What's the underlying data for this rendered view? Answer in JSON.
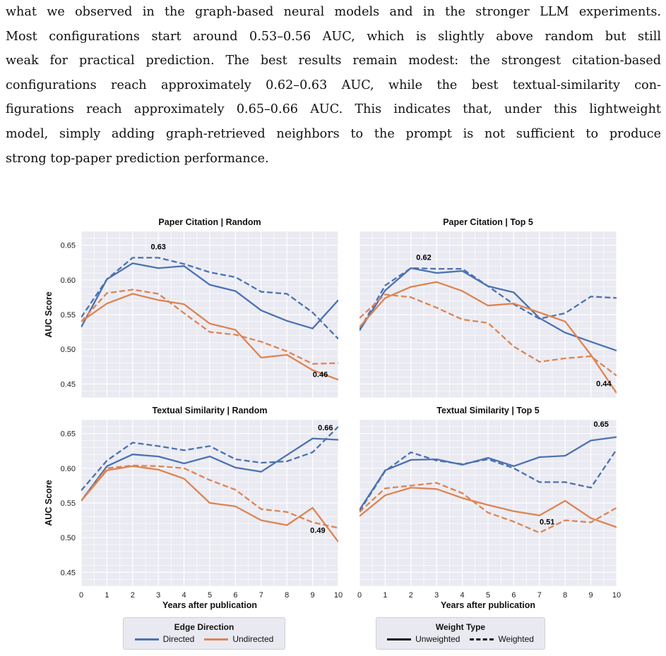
{
  "paragraph": {
    "lines": [
      "what we observed in the graph-based neural models and in the stronger LLM experiments.",
      "Most configurations start around 0.53–0.56 AUC, which is slightly above random but still",
      "weak for practical prediction. The best results remain modest: the strongest citation-based",
      "configurations reach approximately 0.62–0.63 AUC, while the best textual-similarity con-",
      "figurations reach approximately 0.65–0.66 AUC. This indicates that, under this lightweight",
      "model, simply adding graph-retrieved neighbors to the prompt is not sufficient to produce",
      "strong top-paper prediction performance."
    ]
  },
  "colors": {
    "directed": "#4c72b0",
    "undirected": "#dd8452",
    "panel_bg": "#eaeaf2",
    "grid": "#ffffff"
  },
  "chart_data": [
    {
      "type": "line",
      "title": "Paper Citation | Random",
      "xlabel": "",
      "ylabel": "AUC Score",
      "x": [
        0,
        1,
        2,
        3,
        4,
        5,
        6,
        7,
        8,
        9,
        10
      ],
      "ylim": [
        0.43,
        0.67
      ],
      "yticks": [
        "0.65",
        "0.60",
        "0.55",
        "0.50",
        "0.45"
      ],
      "series": [
        {
          "name": "Directed",
          "weight": "Unweighted",
          "values": [
            0.532,
            0.601,
            0.624,
            0.617,
            0.62,
            0.593,
            0.584,
            0.556,
            0.541,
            0.53,
            0.571
          ]
        },
        {
          "name": "Directed",
          "weight": "Weighted",
          "values": [
            0.546,
            0.601,
            0.632,
            0.632,
            0.623,
            0.611,
            0.604,
            0.583,
            0.58,
            0.553,
            0.515
          ]
        },
        {
          "name": "Undirected",
          "weight": "Unweighted",
          "values": [
            0.54,
            0.566,
            0.58,
            0.571,
            0.565,
            0.537,
            0.528,
            0.488,
            0.492,
            0.47,
            0.456
          ]
        },
        {
          "name": "Undirected",
          "weight": "Weighted",
          "values": [
            0.54,
            0.581,
            0.586,
            0.58,
            0.552,
            0.525,
            0.521,
            0.511,
            0.497,
            0.479,
            0.48
          ]
        }
      ],
      "annotations": [
        {
          "text": "0.63",
          "x": 3,
          "y": 0.644
        },
        {
          "text": "0.46",
          "x": 9.3,
          "y": 0.46
        }
      ]
    },
    {
      "type": "line",
      "title": "Paper Citation | Top 5",
      "xlabel": "",
      "ylabel": "",
      "x": [
        0,
        1,
        2,
        3,
        4,
        5,
        6,
        7,
        8,
        9,
        10
      ],
      "ylim": [
        0.43,
        0.67
      ],
      "yticks": [],
      "series": [
        {
          "name": "Directed",
          "weight": "Unweighted",
          "values": [
            0.527,
            0.585,
            0.617,
            0.61,
            0.613,
            0.591,
            0.582,
            0.545,
            0.524,
            0.511,
            0.498
          ]
        },
        {
          "name": "Directed",
          "weight": "Weighted",
          "values": [
            0.528,
            0.592,
            0.617,
            0.616,
            0.616,
            0.591,
            0.565,
            0.544,
            0.552,
            0.576,
            0.574
          ]
        },
        {
          "name": "Undirected",
          "weight": "Unweighted",
          "values": [
            0.532,
            0.574,
            0.59,
            0.597,
            0.584,
            0.563,
            0.566,
            0.553,
            0.54,
            0.492,
            0.437
          ]
        },
        {
          "name": "Undirected",
          "weight": "Weighted",
          "values": [
            0.545,
            0.579,
            0.575,
            0.56,
            0.543,
            0.538,
            0.504,
            0.482,
            0.487,
            0.49,
            0.462
          ]
        }
      ],
      "annotations": [
        {
          "text": "0.62",
          "x": 2.5,
          "y": 0.629
        },
        {
          "text": "0.44",
          "x": 9.5,
          "y": 0.447
        }
      ]
    },
    {
      "type": "line",
      "title": "Textual Similarity | Random",
      "xlabel": "Years after publication",
      "ylabel": "AUC Score",
      "x": [
        0,
        1,
        2,
        3,
        4,
        5,
        6,
        7,
        8,
        9,
        10
      ],
      "xticks": [
        "0",
        "1",
        "2",
        "3",
        "4",
        "5",
        "6",
        "7",
        "8",
        "9",
        "10"
      ],
      "ylim": [
        0.43,
        0.67
      ],
      "yticks": [
        "0.65",
        "0.60",
        "0.55",
        "0.50",
        "0.45"
      ],
      "series": [
        {
          "name": "Directed",
          "weight": "Unweighted",
          "values": [
            0.553,
            0.603,
            0.62,
            0.617,
            0.607,
            0.617,
            0.601,
            0.595,
            0.619,
            0.643,
            0.641
          ]
        },
        {
          "name": "Directed",
          "weight": "Weighted",
          "values": [
            0.568,
            0.611,
            0.637,
            0.632,
            0.626,
            0.632,
            0.613,
            0.608,
            0.61,
            0.623,
            0.66
          ]
        },
        {
          "name": "Undirected",
          "weight": "Unweighted",
          "values": [
            0.553,
            0.597,
            0.603,
            0.598,
            0.585,
            0.55,
            0.545,
            0.525,
            0.518,
            0.543,
            0.494
          ]
        },
        {
          "name": "Undirected",
          "weight": "Weighted",
          "values": [
            0.553,
            0.6,
            0.604,
            0.603,
            0.6,
            0.583,
            0.569,
            0.541,
            0.537,
            0.522,
            0.514
          ]
        }
      ],
      "annotations": [
        {
          "text": "0.66",
          "x": 9.5,
          "y": 0.655
        },
        {
          "text": "0.49",
          "x": 9.2,
          "y": 0.507
        }
      ]
    },
    {
      "type": "line",
      "title": "Textual Similarity | Top 5",
      "xlabel": "Years after publication",
      "ylabel": "",
      "x": [
        0,
        1,
        2,
        3,
        4,
        5,
        6,
        7,
        8,
        9,
        10
      ],
      "xticks": [
        "0",
        "1",
        "2",
        "3",
        "4",
        "5",
        "6",
        "7",
        "8",
        "9",
        "10"
      ],
      "ylim": [
        0.43,
        0.67
      ],
      "yticks": [],
      "series": [
        {
          "name": "Directed",
          "weight": "Unweighted",
          "values": [
            0.54,
            0.597,
            0.612,
            0.613,
            0.605,
            0.615,
            0.603,
            0.616,
            0.618,
            0.64,
            0.645
          ]
        },
        {
          "name": "Directed",
          "weight": "Weighted",
          "values": [
            0.538,
            0.596,
            0.623,
            0.611,
            0.606,
            0.613,
            0.6,
            0.58,
            0.58,
            0.572,
            0.627
          ]
        },
        {
          "name": "Undirected",
          "weight": "Unweighted",
          "values": [
            0.531,
            0.561,
            0.572,
            0.57,
            0.557,
            0.547,
            0.538,
            0.532,
            0.553,
            0.528,
            0.515
          ]
        },
        {
          "name": "Undirected",
          "weight": "Weighted",
          "values": [
            0.537,
            0.571,
            0.575,
            0.579,
            0.564,
            0.536,
            0.523,
            0.507,
            0.525,
            0.522,
            0.543
          ]
        }
      ],
      "annotations": [
        {
          "text": "0.65",
          "x": 9.4,
          "y": 0.66
        },
        {
          "text": "0.51",
          "x": 7.3,
          "y": 0.519
        }
      ]
    }
  ],
  "legends": {
    "edge": {
      "title": "Edge Direction",
      "items": [
        "Directed",
        "Undirected"
      ]
    },
    "weight": {
      "title": "Weight Type",
      "items": [
        "Unweighted",
        "Weighted"
      ]
    }
  }
}
